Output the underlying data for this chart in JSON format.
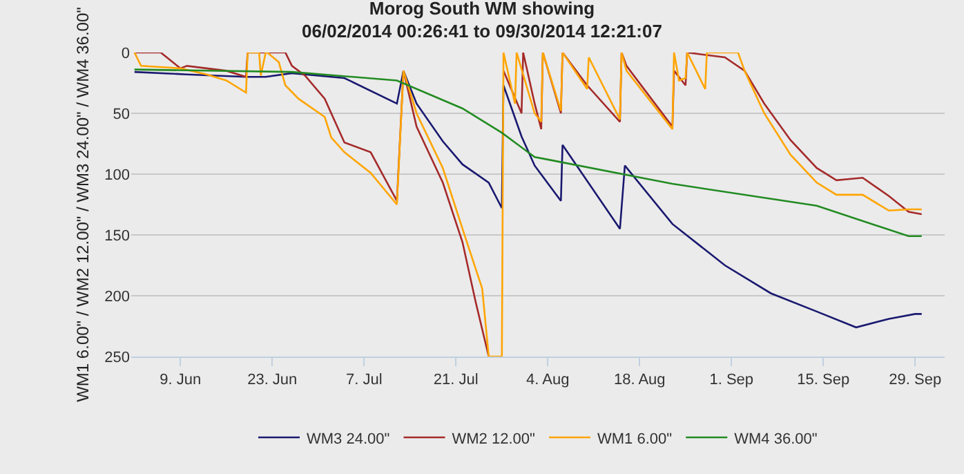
{
  "chart_data": {
    "type": "line",
    "title": "Morog South WM showing",
    "subtitle": "06/02/2014 00:26:41 to 09/30/2014 12:21:07",
    "ylabel": "WM1 6.00\" / WM2 12.00\" / WM3 24.00\" / WM4 36.00\"",
    "xlim": [
      "2014-06-01T12:00",
      "2014-10-03T12:00"
    ],
    "xticks": [
      {
        "value": "2014-06-09",
        "label": "9. Jun"
      },
      {
        "value": "2014-06-23",
        "label": "23. Jun"
      },
      {
        "value": "2014-07-07",
        "label": "7. Jul"
      },
      {
        "value": "2014-07-21",
        "label": "21. Jul"
      },
      {
        "value": "2014-08-04",
        "label": "4. Aug"
      },
      {
        "value": "2014-08-18",
        "label": "18. Aug"
      },
      {
        "value": "2014-09-01",
        "label": "1. Sep"
      },
      {
        "value": "2014-09-15",
        "label": "15. Sep"
      },
      {
        "value": "2014-09-29",
        "label": "29. Sep"
      }
    ],
    "ylim": [
      250,
      0
    ],
    "yticks": [
      0,
      50,
      100,
      150,
      200,
      250
    ],
    "grid": "y",
    "legend": "bottom",
    "marker": "none",
    "line_style": "solid",
    "series": [
      {
        "name": "WM3 24.00\"",
        "color": "#191970",
        "x": [
          "2014-06-02",
          "2014-06-10",
          "2014-06-19",
          "2014-06-22",
          "2014-06-26",
          "2014-07-04",
          "2014-07-12",
          "2014-07-13",
          "2014-07-15",
          "2014-07-19",
          "2014-07-22",
          "2014-07-26",
          "2014-07-28",
          "2014-07-28T06:00",
          "2014-07-31",
          "2014-08-02",
          "2014-08-06",
          "2014-08-06T06:00",
          "2014-08-15",
          "2014-08-15T18:00",
          "2014-08-23",
          "2014-08-31",
          "2014-09-07",
          "2014-09-14",
          "2014-09-20",
          "2014-09-25",
          "2014-09-29",
          "2014-09-30"
        ],
        "values": [
          16,
          18,
          20,
          20,
          17,
          21,
          42,
          15,
          42,
          73,
          92,
          107,
          128,
          27,
          69,
          93,
          122,
          76,
          145,
          93,
          141,
          175,
          198,
          213,
          226,
          219,
          215,
          215
        ]
      },
      {
        "name": "WM2 12.00\"",
        "color": "#a52a2a",
        "x": [
          "2014-06-02",
          "2014-06-06",
          "2014-06-09",
          "2014-06-10",
          "2014-06-16",
          "2014-06-19",
          "2014-06-19T06:00",
          "2014-06-25",
          "2014-06-26",
          "2014-06-28",
          "2014-07-01",
          "2014-07-04",
          "2014-07-08",
          "2014-07-12",
          "2014-07-13",
          "2014-07-15",
          "2014-07-19",
          "2014-07-22",
          "2014-07-24",
          "2014-07-26",
          "2014-07-28",
          "2014-07-28T06:00",
          "2014-07-31",
          "2014-07-31T06:00",
          "2014-08-02",
          "2014-08-03",
          "2014-08-03T06:00",
          "2014-08-06",
          "2014-08-06T06:00",
          "2014-08-10",
          "2014-08-15",
          "2014-08-15T06:00",
          "2014-08-16",
          "2014-08-23",
          "2014-08-23T06:00",
          "2014-08-25",
          "2014-08-25T06:00",
          "2014-08-31",
          "2014-09-03",
          "2014-09-06",
          "2014-09-10",
          "2014-09-14",
          "2014-09-17",
          "2014-09-21",
          "2014-09-25",
          "2014-09-28",
          "2014-09-30"
        ],
        "values": [
          0,
          0,
          13,
          11,
          15,
          20,
          0,
          0,
          11,
          19,
          38,
          74,
          82,
          122,
          15,
          61,
          107,
          156,
          205,
          250,
          null,
          15,
          50,
          0,
          42,
          63,
          0,
          50,
          0,
          27,
          57,
          0,
          11,
          61,
          15,
          27,
          0,
          4,
          15,
          42,
          72,
          95,
          105,
          103,
          118,
          131,
          133
        ]
      },
      {
        "name": "WM1 6.00\"",
        "color": "#ffa500",
        "x": [
          "2014-06-02",
          "2014-06-03",
          "2014-06-09",
          "2014-06-13",
          "2014-06-16",
          "2014-06-19",
          "2014-06-19T06:00",
          "2014-06-21",
          "2014-06-21T06:00",
          "2014-06-22",
          "2014-06-22T06:00",
          "2014-06-24",
          "2014-06-25",
          "2014-06-27",
          "2014-07-01",
          "2014-07-02",
          "2014-07-04",
          "2014-07-08",
          "2014-07-12",
          "2014-07-13",
          "2014-07-15",
          "2014-07-19",
          "2014-07-22",
          "2014-07-25",
          "2014-07-26",
          "2014-07-28",
          "2014-07-28T06:00",
          "2014-07-30",
          "2014-07-30T06:00",
          "2014-08-02",
          "2014-08-03",
          "2014-08-03T06:00",
          "2014-08-06",
          "2014-08-06T06:00",
          "2014-08-10",
          "2014-08-10T06:00",
          "2014-08-15",
          "2014-08-15T06:00",
          "2014-08-16",
          "2014-08-23",
          "2014-08-23T06:00",
          "2014-08-24",
          "2014-08-25",
          "2014-08-25T06:00",
          "2014-08-28",
          "2014-08-28T06:00",
          "2014-09-02",
          "2014-09-03",
          "2014-09-06",
          "2014-09-10",
          "2014-09-14",
          "2014-09-17",
          "2014-09-21",
          "2014-09-25",
          "2014-09-28",
          "2014-09-30"
        ],
        "values": [
          0,
          11,
          13,
          18,
          23,
          33,
          0,
          0,
          19,
          0,
          0,
          8,
          27,
          38,
          53,
          70,
          82,
          99,
          125,
          15,
          50,
          95,
          145,
          194,
          250,
          250,
          0,
          42,
          0,
          50,
          57,
          0,
          48,
          0,
          30,
          4,
          55,
          0,
          15,
          63,
          0,
          23,
          21,
          0,
          30,
          0,
          0,
          15,
          50,
          84,
          107,
          117,
          117,
          130,
          129,
          129
        ]
      },
      {
        "name": "WM4 36.00\"",
        "color": "#228b22",
        "x": [
          "2014-06-02",
          "2014-06-26",
          "2014-07-12",
          "2014-07-22",
          "2014-07-28",
          "2014-08-02",
          "2014-08-04",
          "2014-08-23",
          "2014-09-14",
          "2014-09-28",
          "2014-09-30"
        ],
        "values": [
          14,
          16,
          23,
          46,
          66,
          86,
          88,
          108,
          126,
          151,
          151
        ]
      }
    ]
  }
}
